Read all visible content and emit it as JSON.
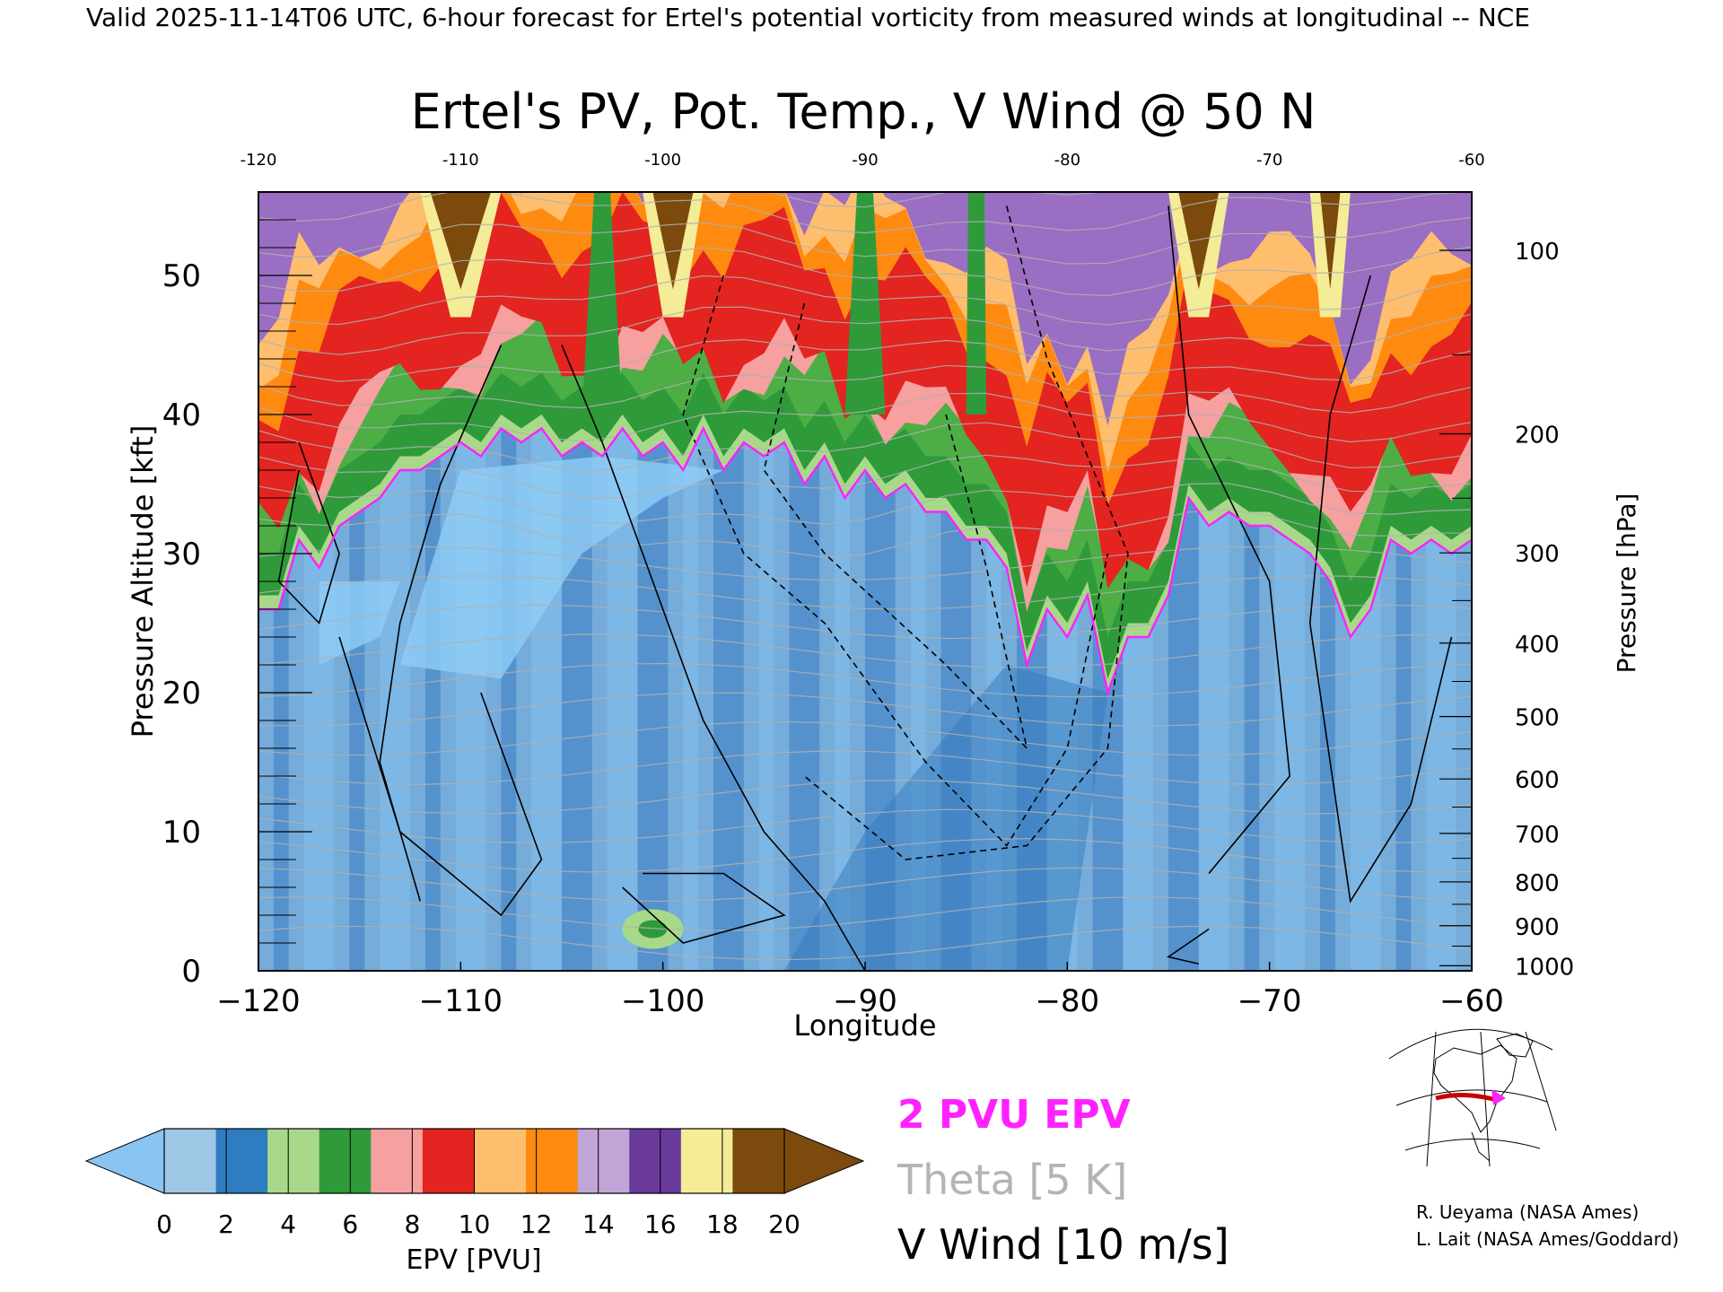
{
  "header": {
    "valid_line": "Valid 2025-11-14T06 UTC, 6-hour forecast for Ertel's potential vorticity from measured winds at longitudinal -- NCE"
  },
  "chart_data": {
    "type": "heatmap",
    "title": "Ertel's PV, Pot. Temp., V Wind @ 50 N",
    "xlabel": "Longitude",
    "ylabel_left": "Pressure Altitude [kft]",
    "ylabel_right": "Pressure [hPa]",
    "xlim": [
      -120,
      -60
    ],
    "ylim": [
      0,
      56
    ],
    "x_ticks": [
      -120,
      -110,
      -100,
      -90,
      -80,
      -70,
      -60
    ],
    "x_tick_labels": [
      "−120",
      "−110",
      "−100",
      "−90",
      "−80",
      "−70",
      "−60"
    ],
    "top_tick_labels": [
      "-120",
      "-110",
      "-100",
      "-90",
      "-80",
      "-70",
      "-60"
    ],
    "y_ticks_kft": [
      0,
      10,
      20,
      30,
      40,
      50
    ],
    "pressure_ticks": [
      {
        "hpa": 100,
        "label": "100"
      },
      {
        "hpa": 200,
        "label": "200"
      },
      {
        "hpa": 300,
        "label": "300"
      },
      {
        "hpa": 400,
        "label": "400"
      },
      {
        "hpa": 500,
        "label": "500"
      },
      {
        "hpa": 600,
        "label": "600"
      },
      {
        "hpa": 700,
        "label": "700"
      },
      {
        "hpa": 800,
        "label": "800"
      },
      {
        "hpa": 900,
        "label": "900"
      },
      {
        "hpa": 1000,
        "label": "1000"
      }
    ],
    "tropopause_2pvu_kft": {
      "x": [
        -120,
        -119,
        -118,
        -117,
        -116,
        -115,
        -114,
        -113,
        -112,
        -111,
        -110,
        -109,
        -108,
        -107,
        -106,
        -105,
        -104,
        -103,
        -102,
        -101,
        -100,
        -99,
        -98,
        -97,
        -96,
        -95,
        -94,
        -93,
        -92,
        -91,
        -90,
        -89,
        -88,
        -87,
        -86,
        -85,
        -84,
        -83,
        -82,
        -81,
        -80,
        -79,
        -78,
        -77,
        -76,
        -75,
        -74,
        -73,
        -72,
        -71,
        -70,
        -69,
        -68,
        -67,
        -66,
        -65,
        -64,
        -63,
        -62,
        -61,
        -60
      ],
      "y": [
        26,
        26,
        31,
        29,
        32,
        33,
        34,
        36,
        36,
        37,
        38,
        37,
        39,
        38,
        39,
        37,
        38,
        37,
        39,
        37,
        38,
        36,
        39,
        36,
        38,
        37,
        38,
        35,
        37,
        34,
        36,
        34,
        35,
        33,
        33,
        31,
        31,
        29,
        22,
        26,
        24,
        27,
        20,
        24,
        24,
        27,
        34,
        32,
        33,
        32,
        32,
        31,
        30,
        28,
        24,
        26,
        31,
        30,
        31,
        30,
        31
      ]
    },
    "wind_contours_note": "V wind contours every 10 m/s (solid positive, dashed negative)",
    "colorbar": {
      "label": "EPV [PVU]",
      "tick_labels": [
        "0",
        "2",
        "4",
        "6",
        "8",
        "10",
        "12",
        "14",
        "16",
        "18",
        "20"
      ],
      "colors": [
        "#9ec8e6",
        "#2f7cc0",
        "#a8d98a",
        "#2f9a3a",
        "#f6a0a0",
        "#e32420",
        "#ffbe6e",
        "#ff8a10",
        "#c0a6d6",
        "#6a3a9a",
        "#f4ec96",
        "#7b4a0c"
      ],
      "under_color": "#8ac4f2",
      "over_color": "#7b4a0c"
    },
    "legend": {
      "pv_line": "2 PVU EPV",
      "theta": "Theta [5 K]",
      "wind": "V Wind [10 m/s]",
      "pv_color": "#ff22ff",
      "theta_color": "#b0b0b0"
    }
  },
  "credits": {
    "line1": "R. Ueyama (NASA Ames)",
    "line2": "L. Lait (NASA Ames/Goddard)"
  }
}
